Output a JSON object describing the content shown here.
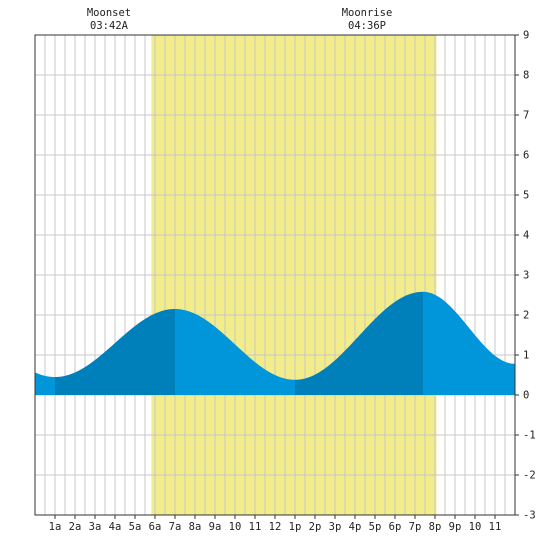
{
  "chart_data": {
    "type": "area",
    "title": "",
    "xlabel": "",
    "ylabel": "",
    "xlim": [
      0,
      24
    ],
    "ylim": [
      -3,
      9
    ],
    "y_ticks": [
      9,
      8,
      7,
      6,
      5,
      4,
      3,
      2,
      1,
      0,
      -1,
      -2,
      -3
    ],
    "x_tick_labels": [
      {
        "hour": 1,
        "label": "1a"
      },
      {
        "hour": 2,
        "label": "2a"
      },
      {
        "hour": 3,
        "label": "3a"
      },
      {
        "hour": 4,
        "label": "4a"
      },
      {
        "hour": 5,
        "label": "5a"
      },
      {
        "hour": 6,
        "label": "6a"
      },
      {
        "hour": 7,
        "label": "7a"
      },
      {
        "hour": 8,
        "label": "8a"
      },
      {
        "hour": 9,
        "label": "9a"
      },
      {
        "hour": 10,
        "label": "10"
      },
      {
        "hour": 11,
        "label": "11"
      },
      {
        "hour": 12,
        "label": "12"
      },
      {
        "hour": 13,
        "label": "1p"
      },
      {
        "hour": 14,
        "label": "2p"
      },
      {
        "hour": 15,
        "label": "3p"
      },
      {
        "hour": 16,
        "label": "4p"
      },
      {
        "hour": 17,
        "label": "5p"
      },
      {
        "hour": 18,
        "label": "6p"
      },
      {
        "hour": 19,
        "label": "7p"
      },
      {
        "hour": 20,
        "label": "8p"
      },
      {
        "hour": 21,
        "label": "9p"
      },
      {
        "hour": 22,
        "label": "10"
      },
      {
        "hour": 23,
        "label": "11"
      }
    ],
    "daylight": {
      "start_hour": 5.82,
      "end_hour": 20.07
    },
    "extremes": [
      {
        "hour": 1.0,
        "value": 0.45
      },
      {
        "hour": 7.0,
        "value": 2.15
      },
      {
        "hour": 13.0,
        "value": 0.38
      },
      {
        "hour": 19.4,
        "value": 2.58
      },
      {
        "hour": 24.0,
        "value": 0.78
      }
    ],
    "annotations": [
      {
        "event": "Moonset",
        "time": "03:42A",
        "hour": 3.7
      },
      {
        "event": "Moonrise",
        "time": "04:36P",
        "hour": 16.6
      }
    ],
    "grid": true,
    "colors": {
      "daylight": "#f2ec8a",
      "tide_light": "#0096d9",
      "tide_dark": "#0080bb",
      "grid": "#c8c8c8",
      "axis": "#333333"
    }
  }
}
